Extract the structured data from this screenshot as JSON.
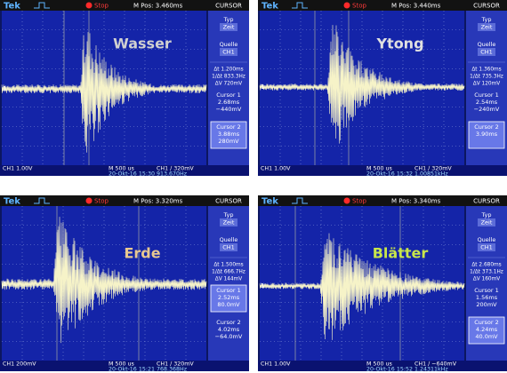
{
  "panels": [
    {
      "brand": "Tek",
      "status": "Stop",
      "position": "M Pos: 3.460ms",
      "menu": "CURSOR",
      "type_label": "Typ",
      "type_value": "Zeit",
      "source_label": "Quelle",
      "source_value": "CH1",
      "delta_t": "Δt 1.200ms",
      "freq": "1/Δt 833.3Hz",
      "delta_v": "ΔV 720mV",
      "cursor1": {
        "label": "Cursor 1",
        "time": "2.68ms",
        "level": "−440mV"
      },
      "cursor2": {
        "label": "Cursor 2",
        "time": "3.88ms",
        "level": "280mV"
      },
      "channel": "CH1 1.00V",
      "timebase": "M 500 us",
      "date": "20-Okt-16 15:30",
      "trigger": "CH1 ∕ 320mV",
      "trigger_freq": "913.670Hz",
      "label": "Wasser"
    },
    {
      "brand": "Tek",
      "status": "Stop",
      "position": "M Pos: 3.440ms",
      "menu": "CURSOR",
      "type_label": "Typ",
      "type_value": "Zeit",
      "source_label": "Quelle",
      "source_value": "CH1",
      "delta_t": "Δt 1.360ms",
      "freq": "1/Δt 735.3Hz",
      "delta_v": "ΔV 120mV",
      "cursor1": {
        "label": "Cursor 1",
        "time": "2.54ms",
        "level": "−240mV"
      },
      "cursor2": {
        "label": "Cursor 2",
        "time": "3.90ms"
      },
      "channel": "CH1 1.00V",
      "timebase": "M 500 us",
      "date": "20-Okt-16 15:32",
      "trigger": "CH1 ∕ 320mV",
      "trigger_freq": "1.00851kHz",
      "label": "Ytong"
    },
    {
      "brand": "Tek",
      "status": "Stop",
      "position": "M Pos: 3.320ms",
      "menu": "CURSOR",
      "type_label": "Typ",
      "type_value": "Zeit",
      "source_label": "Quelle",
      "source_value": "CH1",
      "delta_t": "Δt 1.500ms",
      "freq": "1/Δt 666.7Hz",
      "delta_v": "ΔV 144mV",
      "cursor1": {
        "label": "Cursor 1",
        "time": "2.52ms",
        "level": "80.0mV"
      },
      "cursor2": {
        "label": "Cursor 2",
        "time": "4.02ms",
        "level": "−64.0mV"
      },
      "channel": "CH1 200mV",
      "timebase": "M 500 us",
      "date": "20-Okt-16 15:21",
      "trigger": "CH1 ∕ 320mV",
      "trigger_freq": "768.368Hz",
      "label": "Erde"
    },
    {
      "brand": "Tek",
      "status": "Stop",
      "position": "M Pos: 3.340ms",
      "menu": "CURSOR",
      "type_label": "Typ",
      "type_value": "Zeit",
      "source_label": "Quelle",
      "source_value": "CH1",
      "delta_t": "Δt 2.680ms",
      "freq": "1/Δt 373.1Hz",
      "delta_v": "ΔV 160mV",
      "cursor1": {
        "label": "Cursor 1",
        "time": "1.56ms",
        "level": "200mV"
      },
      "cursor2": {
        "label": "Cursor 2",
        "time": "4.24ms",
        "level": "40.0mV"
      },
      "channel": "CH1 1.00V",
      "timebase": "M 500 us",
      "date": "20-Okt-16 15:52",
      "trigger": "CH1 ∕ −640mV",
      "trigger_freq": "1.24311kHz",
      "label": "Blätter"
    }
  ]
}
